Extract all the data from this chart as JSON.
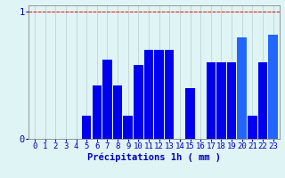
{
  "title": "",
  "xlabel": "Précipitations 1h ( mm )",
  "ylabel": "",
  "categories": [
    0,
    1,
    2,
    3,
    4,
    5,
    6,
    7,
    8,
    9,
    10,
    11,
    12,
    13,
    14,
    15,
    16,
    17,
    18,
    19,
    20,
    21,
    22,
    23
  ],
  "values": [
    0,
    0,
    0,
    0,
    0,
    0.18,
    0.42,
    0.62,
    0.42,
    0.18,
    0.58,
    0.7,
    0.7,
    0.7,
    0,
    0.4,
    0,
    0.6,
    0.6,
    0.6,
    0.8,
    0.18,
    0.6,
    0.82
  ],
  "bar_color": "#0000ee",
  "bar_color_light": "#2266ff",
  "bg_color": "#dff4f4",
  "grid_color": "#b8d0d0",
  "axis_color": "#888888",
  "text_color": "#0000bb",
  "ylim": [
    0,
    1.05
  ],
  "yticks": [
    0,
    1
  ],
  "xlabel_fontsize": 7.5,
  "tick_fontsize": 6.5,
  "red_line_y": 1.0
}
